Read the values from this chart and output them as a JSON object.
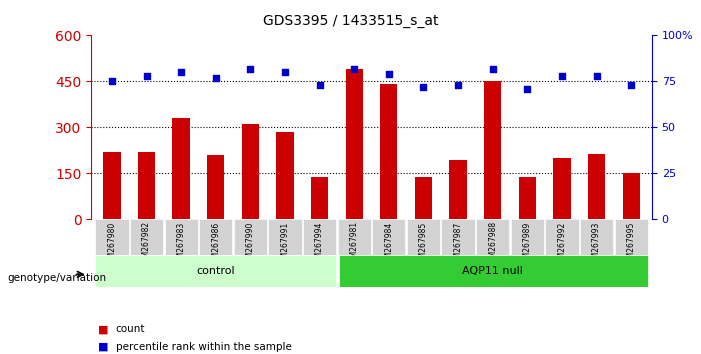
{
  "title": "GDS3395 / 1433515_s_at",
  "samples": [
    "GSM267980",
    "GSM267982",
    "GSM267983",
    "GSM267986",
    "GSM267990",
    "GSM267991",
    "GSM267994",
    "GSM267981",
    "GSM267984",
    "GSM267985",
    "GSM267987",
    "GSM267988",
    "GSM267989",
    "GSM267992",
    "GSM267993",
    "GSM267995"
  ],
  "counts": [
    220,
    220,
    330,
    210,
    310,
    285,
    140,
    490,
    440,
    140,
    195,
    450,
    140,
    200,
    215,
    150
  ],
  "percentiles": [
    75,
    78,
    80,
    77,
    82,
    80,
    73,
    82,
    79,
    72,
    73,
    82,
    71,
    78,
    78,
    73
  ],
  "groups": [
    "control",
    "control",
    "control",
    "control",
    "control",
    "control",
    "control",
    "AQP11 null",
    "AQP11 null",
    "AQP11 null",
    "AQP11 null",
    "AQP11 null",
    "AQP11 null",
    "AQP11 null",
    "AQP11 null",
    "AQP11 null"
  ],
  "group_labels": [
    "control",
    "AQP11 null"
  ],
  "group_split": 7,
  "bar_color": "#cc0000",
  "dot_color": "#0000cc",
  "left_axis_color": "#cc0000",
  "right_axis_color": "#0000cc",
  "ylim_left": [
    0,
    600
  ],
  "ylim_right": [
    0,
    100
  ],
  "left_ticks": [
    0,
    150,
    300,
    450,
    600
  ],
  "right_ticks": [
    0,
    25,
    50,
    75,
    100
  ],
  "grid_lines": [
    150,
    300,
    450
  ],
  "control_color": "#ccffcc",
  "aqp_color": "#33cc33",
  "xlabel_area_color": "#cccccc",
  "legend_count_color": "#cc0000",
  "legend_pct_color": "#0000cc"
}
